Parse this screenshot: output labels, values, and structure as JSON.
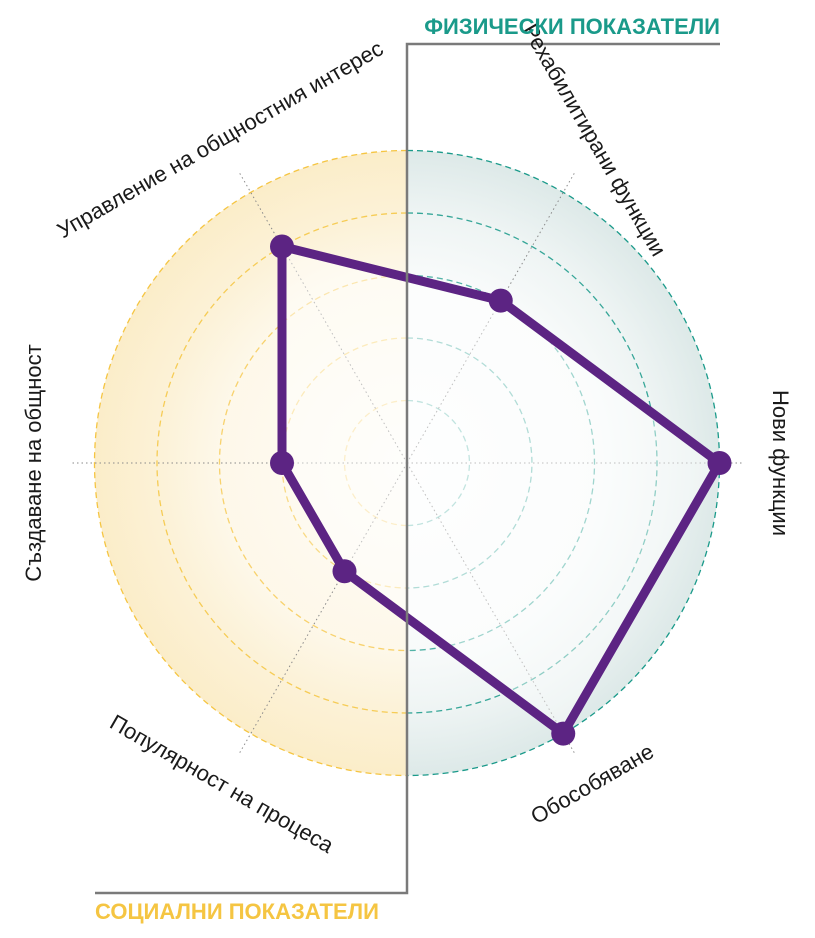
{
  "colors": {
    "social": "#f5c542",
    "social_fill": "#fbedc9",
    "physical": "#1a9a8a",
    "physical_fill": "#dde9e8",
    "series": "#5c2483",
    "divider": "#7a7a7a",
    "spoke": "#8a8a8a"
  },
  "group_labels": {
    "physical": "ФИЗИЧЕСКИ ПОКАЗАТЕЛИ",
    "social": "СОЦИАЛНИ ПОКАЗАТЕЛИ"
  },
  "chart_data": {
    "type": "radar",
    "axes": [
      "Рехабилитирани функции",
      "Нови функции",
      "Обособяване",
      "Популярност на процеса",
      "Създаване на общност",
      "Управление на общностния интерес"
    ],
    "axis_groups": [
      "physical",
      "physical",
      "physical",
      "social",
      "social",
      "social"
    ],
    "rings": [
      1,
      2,
      3,
      4,
      5
    ],
    "max": 5,
    "values": [
      3,
      5,
      5,
      2,
      2,
      4
    ]
  }
}
